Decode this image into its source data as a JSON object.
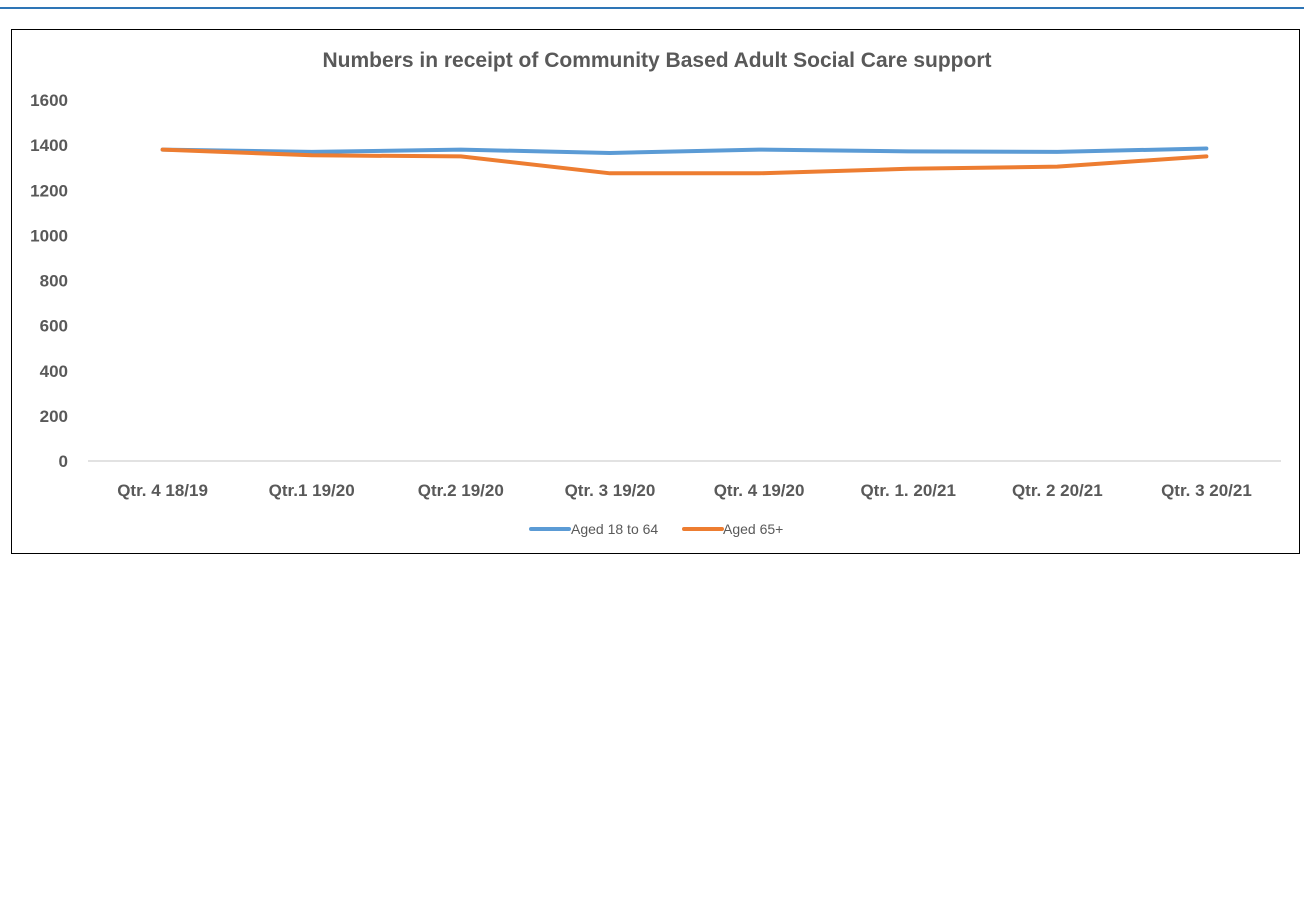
{
  "chart_data": {
    "type": "line",
    "title": "Numbers in receipt of Community Based Adult Social Care support",
    "xlabel": "",
    "ylabel": "",
    "categories": [
      "Qtr. 4 18/19",
      "Qtr.1 19/20",
      "Qtr.2 19/20",
      "Qtr. 3 19/20",
      "Qtr. 4 19/20",
      "Qtr. 1. 20/21",
      "Qtr. 2 20/21",
      "Qtr. 3 20/21"
    ],
    "ylim": [
      0,
      1600
    ],
    "yticks": [
      0,
      200,
      400,
      600,
      800,
      1000,
      1200,
      1400,
      1600
    ],
    "grid": false,
    "legend_position": "bottom",
    "series": [
      {
        "name": "Aged 18 to 64",
        "color": "#5b9bd5",
        "values": [
          1380,
          1370,
          1380,
          1365,
          1380,
          1372,
          1370,
          1385
        ]
      },
      {
        "name": "Aged 65+",
        "color": "#ed7d31",
        "values": [
          1380,
          1355,
          1350,
          1275,
          1275,
          1295,
          1305,
          1350
        ]
      }
    ]
  }
}
